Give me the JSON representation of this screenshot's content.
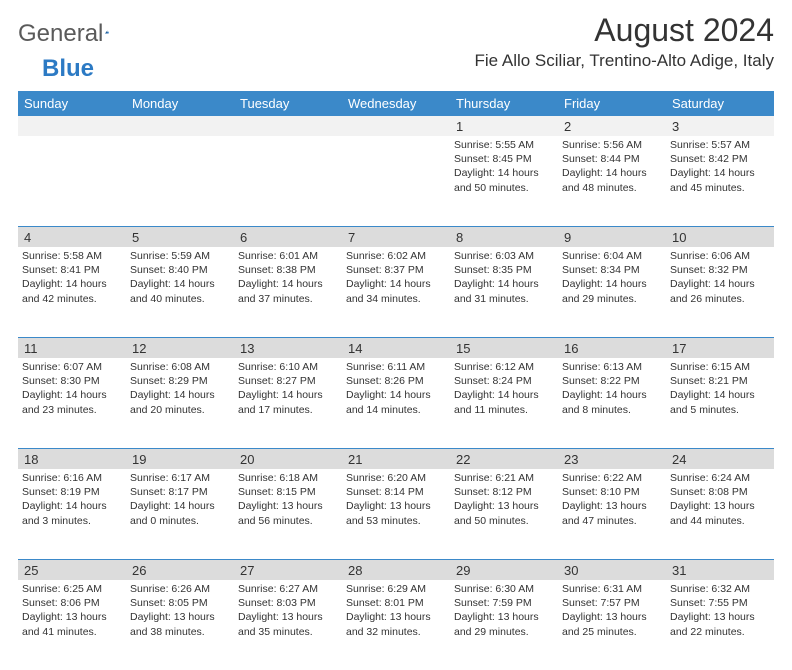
{
  "brand": {
    "word1": "General",
    "word2": "Blue"
  },
  "header": {
    "month_title": "August 2024",
    "location": "Fie Allo Sciliar, Trentino-Alto Adige, Italy"
  },
  "colors": {
    "header_bar": "#3b89c9",
    "band_light": "#f2f2f2",
    "band_dark": "#dcdcdc",
    "divider": "#3b89c9",
    "text": "#333333",
    "background": "#ffffff",
    "logo_gray": "#5a5a5a",
    "logo_blue": "#2c7ac4"
  },
  "typography": {
    "month_fontsize": 32,
    "location_fontsize": 17,
    "dayheader_fontsize": 13,
    "daynum_fontsize": 13,
    "body_fontsize": 10.5
  },
  "day_labels": [
    "Sunday",
    "Monday",
    "Tuesday",
    "Wednesday",
    "Thursday",
    "Friday",
    "Saturday"
  ],
  "weeks": [
    {
      "band": "light",
      "days": [
        {
          "num": "",
          "sunrise": "",
          "sunset": "",
          "daylight": ""
        },
        {
          "num": "",
          "sunrise": "",
          "sunset": "",
          "daylight": ""
        },
        {
          "num": "",
          "sunrise": "",
          "sunset": "",
          "daylight": ""
        },
        {
          "num": "",
          "sunrise": "",
          "sunset": "",
          "daylight": ""
        },
        {
          "num": "1",
          "sunrise": "Sunrise: 5:55 AM",
          "sunset": "Sunset: 8:45 PM",
          "daylight": "Daylight: 14 hours and 50 minutes."
        },
        {
          "num": "2",
          "sunrise": "Sunrise: 5:56 AM",
          "sunset": "Sunset: 8:44 PM",
          "daylight": "Daylight: 14 hours and 48 minutes."
        },
        {
          "num": "3",
          "sunrise": "Sunrise: 5:57 AM",
          "sunset": "Sunset: 8:42 PM",
          "daylight": "Daylight: 14 hours and 45 minutes."
        }
      ]
    },
    {
      "band": "dark",
      "days": [
        {
          "num": "4",
          "sunrise": "Sunrise: 5:58 AM",
          "sunset": "Sunset: 8:41 PM",
          "daylight": "Daylight: 14 hours and 42 minutes."
        },
        {
          "num": "5",
          "sunrise": "Sunrise: 5:59 AM",
          "sunset": "Sunset: 8:40 PM",
          "daylight": "Daylight: 14 hours and 40 minutes."
        },
        {
          "num": "6",
          "sunrise": "Sunrise: 6:01 AM",
          "sunset": "Sunset: 8:38 PM",
          "daylight": "Daylight: 14 hours and 37 minutes."
        },
        {
          "num": "7",
          "sunrise": "Sunrise: 6:02 AM",
          "sunset": "Sunset: 8:37 PM",
          "daylight": "Daylight: 14 hours and 34 minutes."
        },
        {
          "num": "8",
          "sunrise": "Sunrise: 6:03 AM",
          "sunset": "Sunset: 8:35 PM",
          "daylight": "Daylight: 14 hours and 31 minutes."
        },
        {
          "num": "9",
          "sunrise": "Sunrise: 6:04 AM",
          "sunset": "Sunset: 8:34 PM",
          "daylight": "Daylight: 14 hours and 29 minutes."
        },
        {
          "num": "10",
          "sunrise": "Sunrise: 6:06 AM",
          "sunset": "Sunset: 8:32 PM",
          "daylight": "Daylight: 14 hours and 26 minutes."
        }
      ]
    },
    {
      "band": "dark",
      "days": [
        {
          "num": "11",
          "sunrise": "Sunrise: 6:07 AM",
          "sunset": "Sunset: 8:30 PM",
          "daylight": "Daylight: 14 hours and 23 minutes."
        },
        {
          "num": "12",
          "sunrise": "Sunrise: 6:08 AM",
          "sunset": "Sunset: 8:29 PM",
          "daylight": "Daylight: 14 hours and 20 minutes."
        },
        {
          "num": "13",
          "sunrise": "Sunrise: 6:10 AM",
          "sunset": "Sunset: 8:27 PM",
          "daylight": "Daylight: 14 hours and 17 minutes."
        },
        {
          "num": "14",
          "sunrise": "Sunrise: 6:11 AM",
          "sunset": "Sunset: 8:26 PM",
          "daylight": "Daylight: 14 hours and 14 minutes."
        },
        {
          "num": "15",
          "sunrise": "Sunrise: 6:12 AM",
          "sunset": "Sunset: 8:24 PM",
          "daylight": "Daylight: 14 hours and 11 minutes."
        },
        {
          "num": "16",
          "sunrise": "Sunrise: 6:13 AM",
          "sunset": "Sunset: 8:22 PM",
          "daylight": "Daylight: 14 hours and 8 minutes."
        },
        {
          "num": "17",
          "sunrise": "Sunrise: 6:15 AM",
          "sunset": "Sunset: 8:21 PM",
          "daylight": "Daylight: 14 hours and 5 minutes."
        }
      ]
    },
    {
      "band": "dark",
      "days": [
        {
          "num": "18",
          "sunrise": "Sunrise: 6:16 AM",
          "sunset": "Sunset: 8:19 PM",
          "daylight": "Daylight: 14 hours and 3 minutes."
        },
        {
          "num": "19",
          "sunrise": "Sunrise: 6:17 AM",
          "sunset": "Sunset: 8:17 PM",
          "daylight": "Daylight: 14 hours and 0 minutes."
        },
        {
          "num": "20",
          "sunrise": "Sunrise: 6:18 AM",
          "sunset": "Sunset: 8:15 PM",
          "daylight": "Daylight: 13 hours and 56 minutes."
        },
        {
          "num": "21",
          "sunrise": "Sunrise: 6:20 AM",
          "sunset": "Sunset: 8:14 PM",
          "daylight": "Daylight: 13 hours and 53 minutes."
        },
        {
          "num": "22",
          "sunrise": "Sunrise: 6:21 AM",
          "sunset": "Sunset: 8:12 PM",
          "daylight": "Daylight: 13 hours and 50 minutes."
        },
        {
          "num": "23",
          "sunrise": "Sunrise: 6:22 AM",
          "sunset": "Sunset: 8:10 PM",
          "daylight": "Daylight: 13 hours and 47 minutes."
        },
        {
          "num": "24",
          "sunrise": "Sunrise: 6:24 AM",
          "sunset": "Sunset: 8:08 PM",
          "daylight": "Daylight: 13 hours and 44 minutes."
        }
      ]
    },
    {
      "band": "dark",
      "days": [
        {
          "num": "25",
          "sunrise": "Sunrise: 6:25 AM",
          "sunset": "Sunset: 8:06 PM",
          "daylight": "Daylight: 13 hours and 41 minutes."
        },
        {
          "num": "26",
          "sunrise": "Sunrise: 6:26 AM",
          "sunset": "Sunset: 8:05 PM",
          "daylight": "Daylight: 13 hours and 38 minutes."
        },
        {
          "num": "27",
          "sunrise": "Sunrise: 6:27 AM",
          "sunset": "Sunset: 8:03 PM",
          "daylight": "Daylight: 13 hours and 35 minutes."
        },
        {
          "num": "28",
          "sunrise": "Sunrise: 6:29 AM",
          "sunset": "Sunset: 8:01 PM",
          "daylight": "Daylight: 13 hours and 32 minutes."
        },
        {
          "num": "29",
          "sunrise": "Sunrise: 6:30 AM",
          "sunset": "Sunset: 7:59 PM",
          "daylight": "Daylight: 13 hours and 29 minutes."
        },
        {
          "num": "30",
          "sunrise": "Sunrise: 6:31 AM",
          "sunset": "Sunset: 7:57 PM",
          "daylight": "Daylight: 13 hours and 25 minutes."
        },
        {
          "num": "31",
          "sunrise": "Sunrise: 6:32 AM",
          "sunset": "Sunset: 7:55 PM",
          "daylight": "Daylight: 13 hours and 22 minutes."
        }
      ]
    }
  ]
}
